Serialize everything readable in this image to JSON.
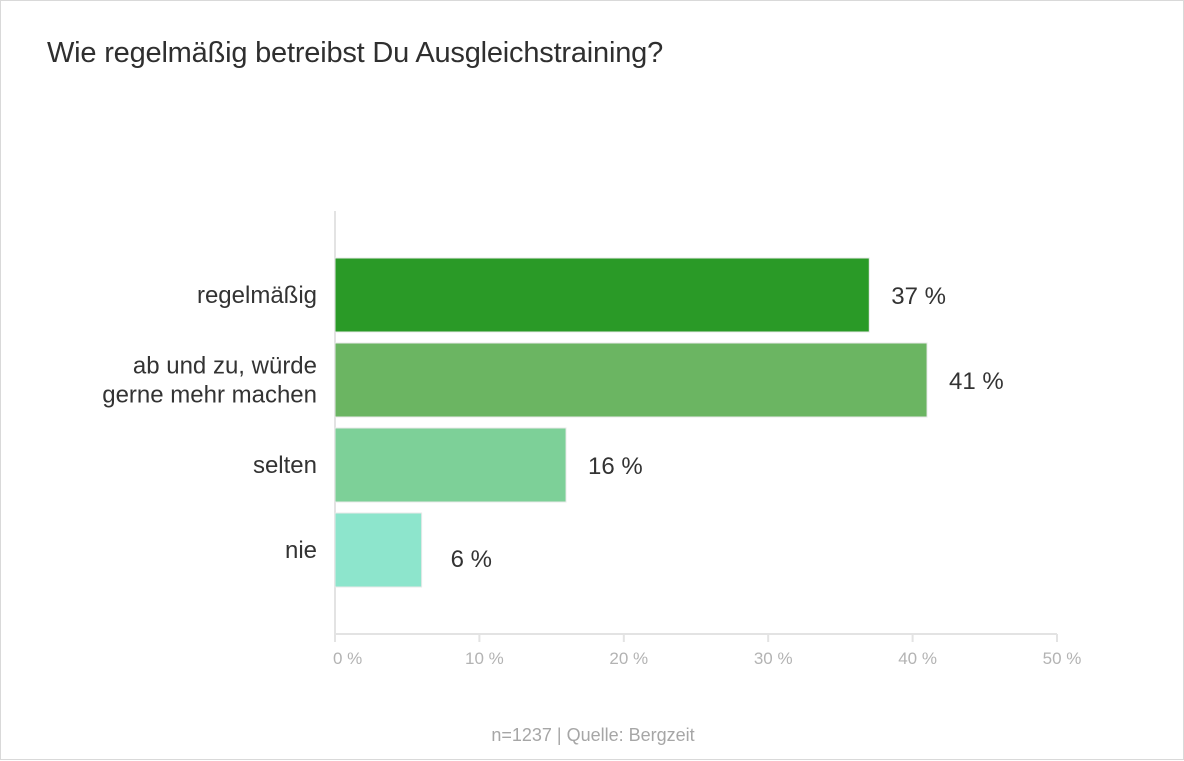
{
  "title": "Wie regelmäßig betreibst Du Ausgleichstraining?",
  "footer": "n=1237 | Quelle: Bergzeit",
  "chart_data": {
    "type": "bar",
    "orientation": "horizontal",
    "title": "Wie regelmäßig betreibst Du Ausgleichstraining?",
    "categories": [
      [
        "regelmäßig"
      ],
      [
        "ab und zu, würde",
        "gerne mehr machen"
      ],
      [
        "selten"
      ],
      [
        "nie"
      ]
    ],
    "values": [
      37,
      41,
      16,
      6
    ],
    "value_labels": [
      "37 %",
      "41 %",
      "16 %",
      "6 %"
    ],
    "colors": [
      "#2a9a27",
      "#6bb562",
      "#7dd098",
      "#8de5cc"
    ],
    "xlim": [
      0,
      50
    ],
    "xticks": [
      0,
      10,
      20,
      30,
      40,
      50
    ],
    "xtick_labels": [
      "0 %",
      "10 %",
      "20 %",
      "30 %",
      "40 %",
      "50 %"
    ],
    "xlabel": "",
    "ylabel": "",
    "grid": false,
    "legend": "none"
  }
}
